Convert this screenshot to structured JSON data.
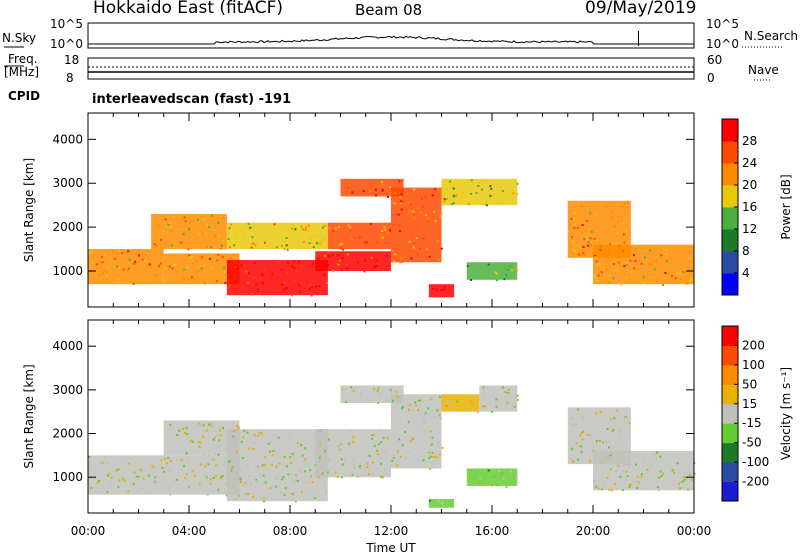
{
  "header": {
    "title": "Hokkaido East (fitACF)",
    "beam": "Beam 08",
    "date": "09/May/2019"
  },
  "nsky": {
    "label": "N.Sky",
    "left_ticks": [
      "10^5",
      "10^0"
    ],
    "right_label": "N.Search",
    "right_ticks": [
      "10^5",
      "10^0"
    ]
  },
  "freq": {
    "label_line1": "Freq.",
    "label_line2": "[MHz]",
    "left_ticks": [
      "18",
      "8"
    ],
    "right_label": "Nave",
    "right_ticks": [
      "60",
      "0"
    ]
  },
  "cpid": {
    "label": "CPID",
    "text": "interleavedscan (fast) -191"
  },
  "time_axis": {
    "xlabel": "Time UT",
    "ticks": [
      "00:00",
      "04:00",
      "08:00",
      "12:00",
      "16:00",
      "20:00",
      "00:00"
    ]
  },
  "colors": {
    "power": [
      "#0000ff",
      "#2c4aa8",
      "#1e7a2a",
      "#4caf3c",
      "#e8c80a",
      "#ff8c00",
      "#ff4a00",
      "#ff0000"
    ],
    "velocity": [
      "#1a1ad0",
      "#2c4aa8",
      "#1e7a2a",
      "#66cc33",
      "#c0c0bb",
      "#e8b000",
      "#ff8c00",
      "#ff4a00",
      "#ff0000"
    ],
    "ground": "#c0c0bb"
  },
  "chart_data": [
    {
      "type": "heatmap",
      "panel": "power",
      "ylabel": "Slant Range [km]",
      "xlabel": "Time UT",
      "xlim": [
        0,
        24
      ],
      "ylim": [
        180,
        4600
      ],
      "yticks": [
        "1000",
        "2000",
        "3000",
        "4000"
      ],
      "colorbar_label": "Power [dB]",
      "colorbar_ticks": [
        "28",
        "24",
        "20",
        "16",
        "12",
        "8",
        "4"
      ],
      "colorbar_range": [
        0,
        32
      ],
      "regions": [
        {
          "t0": 0.0,
          "t1": 3.0,
          "r0": 700,
          "r1": 1500,
          "value": 22
        },
        {
          "t0": 3.0,
          "t1": 6.0,
          "r0": 700,
          "r1": 1400,
          "value": 22
        },
        {
          "t0": 5.5,
          "t1": 9.5,
          "r0": 450,
          "r1": 1250,
          "value": 30
        },
        {
          "t0": 9.0,
          "t1": 12.0,
          "r0": 1000,
          "r1": 1450,
          "value": 28
        },
        {
          "t0": 2.5,
          "t1": 5.5,
          "r0": 1500,
          "r1": 2300,
          "value": 20
        },
        {
          "t0": 5.5,
          "t1": 9.5,
          "r0": 1500,
          "r1": 2100,
          "value": 18
        },
        {
          "t0": 9.5,
          "t1": 12.0,
          "r0": 1500,
          "r1": 2100,
          "value": 24
        },
        {
          "t0": 10.0,
          "t1": 12.5,
          "r0": 2700,
          "r1": 3100,
          "value": 26
        },
        {
          "t0": 12.0,
          "t1": 14.0,
          "r0": 1200,
          "r1": 2900,
          "value": 24
        },
        {
          "t0": 13.5,
          "t1": 14.5,
          "r0": 400,
          "r1": 700,
          "value": 30
        },
        {
          "t0": 14.0,
          "t1": 17.0,
          "r0": 2500,
          "r1": 3100,
          "value": 16
        },
        {
          "t0": 15.0,
          "t1": 17.0,
          "r0": 800,
          "r1": 1200,
          "value": 14
        },
        {
          "t0": 19.0,
          "t1": 21.5,
          "r0": 1300,
          "r1": 2600,
          "value": 22
        },
        {
          "t0": 20.0,
          "t1": 24.0,
          "r0": 700,
          "r1": 1600,
          "value": 22
        }
      ]
    },
    {
      "type": "heatmap",
      "panel": "velocity",
      "ylabel": "Slant Range [km]",
      "xlabel": "Time UT",
      "xlim": [
        0,
        24
      ],
      "ylim": [
        180,
        4600
      ],
      "yticks": [
        "1000",
        "2000",
        "3000",
        "4000"
      ],
      "colorbar_label": "Velocity [m s⁻¹]",
      "colorbar_ticks": [
        "200",
        "100",
        "50",
        "15",
        "-15",
        "-50",
        "-100",
        "-200"
      ],
      "colorbar_range": [
        -250,
        250
      ],
      "regions": [
        {
          "t0": 0.0,
          "t1": 6.0,
          "r0": 600,
          "r1": 1500,
          "value": 0
        },
        {
          "t0": 3.0,
          "t1": 6.0,
          "r0": 1500,
          "r1": 2300,
          "value": 0
        },
        {
          "t0": 5.5,
          "t1": 9.5,
          "r0": 450,
          "r1": 2100,
          "value": 0
        },
        {
          "t0": 9.0,
          "t1": 12.0,
          "r0": 1000,
          "r1": 2100,
          "value": 0
        },
        {
          "t0": 10.0,
          "t1": 12.5,
          "r0": 2700,
          "r1": 3100,
          "value": 0
        },
        {
          "t0": 12.0,
          "t1": 14.0,
          "r0": 1200,
          "r1": 2900,
          "value": 0
        },
        {
          "t0": 14.0,
          "t1": 15.5,
          "r0": 2500,
          "r1": 2900,
          "value": 30
        },
        {
          "t0": 15.5,
          "t1": 17.0,
          "r0": 2500,
          "r1": 3100,
          "value": 0
        },
        {
          "t0": 15.0,
          "t1": 17.0,
          "r0": 800,
          "r1": 1200,
          "value": -30
        },
        {
          "t0": 13.5,
          "t1": 14.5,
          "r0": 300,
          "r1": 500,
          "value": -40
        },
        {
          "t0": 19.0,
          "t1": 21.5,
          "r0": 1300,
          "r1": 2600,
          "value": 0
        },
        {
          "t0": 20.0,
          "t1": 24.0,
          "r0": 700,
          "r1": 1600,
          "value": 0
        }
      ]
    }
  ]
}
